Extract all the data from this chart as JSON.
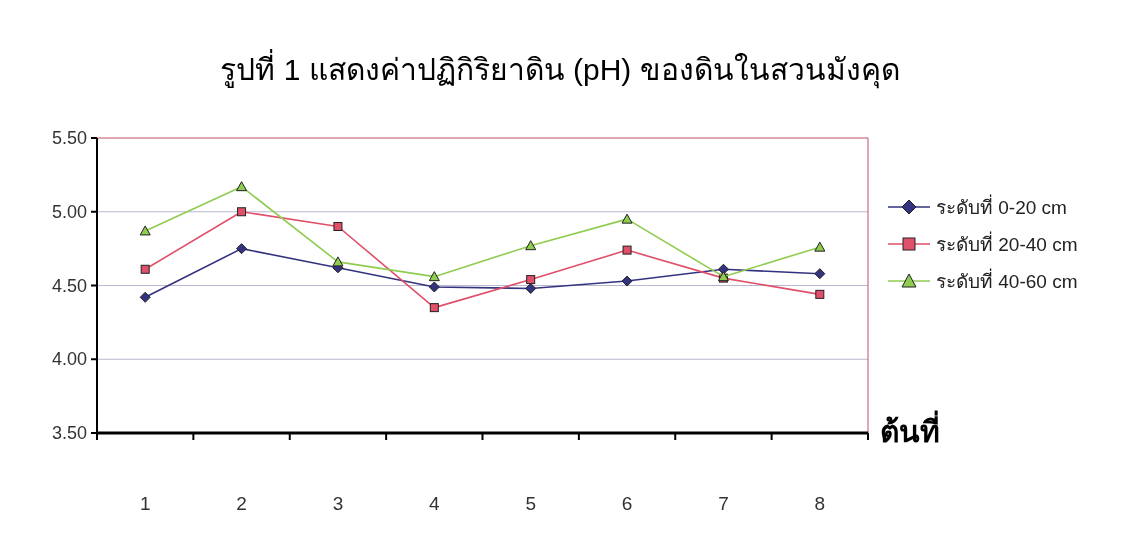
{
  "chart_data": {
    "type": "line",
    "title": "รูปที่ 1 แสดงค่าปฏิกิริยาดิน (pH) ของดินในสวนมังคุด",
    "xlabel": "ต้นที่",
    "categories": [
      "1",
      "2",
      "3",
      "4",
      "5",
      "6",
      "7",
      "8"
    ],
    "series": [
      {
        "name": "ระดับที่ 0-20 cm",
        "color": "#33337f",
        "marker": "diamond",
        "values": [
          4.42,
          4.75,
          4.62,
          4.49,
          4.48,
          4.53,
          4.61,
          4.58
        ]
      },
      {
        "name": "ระดับที่ 20-40 cm",
        "color": "#e0506a",
        "marker": "square",
        "values": [
          4.61,
          5.0,
          4.9,
          4.35,
          4.54,
          4.74,
          4.55,
          4.44
        ]
      },
      {
        "name": "ระดับที่ 40-60 cm",
        "color": "#8fcc4f",
        "marker": "triangle",
        "values": [
          4.87,
          5.17,
          4.66,
          4.56,
          4.77,
          4.95,
          4.56,
          4.76
        ]
      }
    ],
    "ylim": [
      3.5,
      5.5
    ],
    "yticks": [
      {
        "value": 3.5,
        "label": "3.50"
      },
      {
        "value": 4.0,
        "label": "4.00"
      },
      {
        "value": 4.5,
        "label": "4.50"
      },
      {
        "value": 5.0,
        "label": "5.00"
      },
      {
        "value": 5.5,
        "label": "5.50"
      }
    ],
    "grid": "y",
    "legend": "right"
  }
}
